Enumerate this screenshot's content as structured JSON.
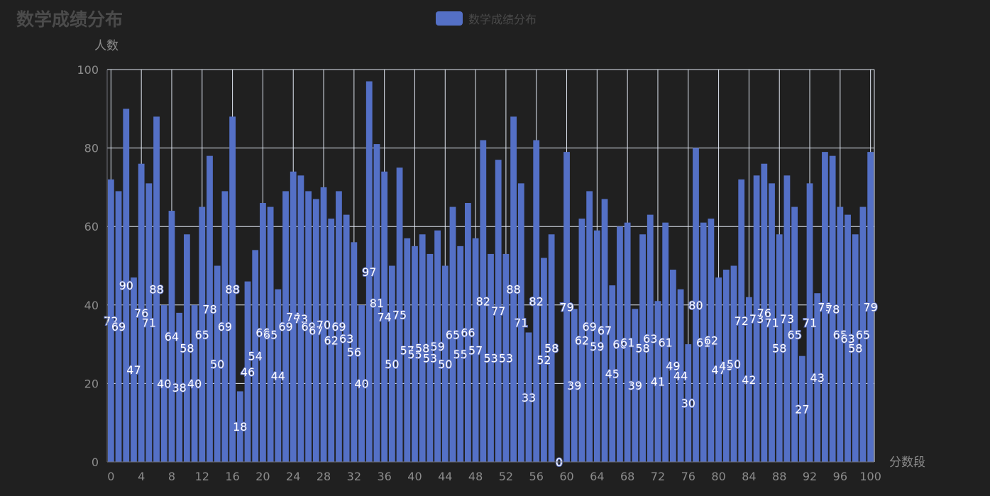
{
  "chart_data": {
    "type": "bar",
    "title": "数学成绩分布",
    "legend": [
      "数学成绩分布"
    ],
    "legend_position": "top-center",
    "xlabel": "分数段",
    "ylabel": "人数",
    "ylim": [
      0,
      100
    ],
    "y_ticks": [
      0,
      20,
      40,
      60,
      80,
      100
    ],
    "x_ticks": [
      0,
      4,
      8,
      12,
      16,
      20,
      24,
      28,
      32,
      36,
      40,
      44,
      48,
      52,
      56,
      60,
      64,
      68,
      72,
      76,
      80,
      84,
      88,
      92,
      96,
      100
    ],
    "grid": true,
    "bar_color": "#5470c6",
    "categories": [
      0,
      1,
      2,
      3,
      4,
      5,
      6,
      7,
      8,
      9,
      10,
      11,
      12,
      13,
      14,
      15,
      16,
      17,
      18,
      19,
      20,
      21,
      22,
      23,
      24,
      25,
      26,
      27,
      28,
      29,
      30,
      31,
      32,
      33,
      34,
      35,
      36,
      37,
      38,
      39,
      40,
      41,
      42,
      43,
      44,
      45,
      46,
      47,
      48,
      49,
      50,
      51,
      52,
      53,
      54,
      55,
      56,
      57,
      58,
      59,
      60,
      61,
      62,
      63,
      64,
      65,
      66,
      67,
      68,
      69,
      70,
      71,
      72,
      73,
      74,
      75,
      76,
      77,
      78,
      79,
      80,
      81,
      82,
      83,
      84,
      85,
      86,
      87,
      88,
      89,
      90,
      91,
      92,
      93,
      94,
      95,
      96,
      97,
      98,
      99,
      100
    ],
    "series": [
      {
        "name": "数学成绩分布",
        "values": [
          72,
          69,
          90,
          47,
          76,
          71,
          88,
          40,
          64,
          38,
          58,
          40,
          65,
          78,
          50,
          69,
          88,
          18,
          46,
          54,
          66,
          65,
          44,
          69,
          74,
          73,
          69,
          67,
          70,
          62,
          69,
          63,
          56,
          40,
          97,
          81,
          74,
          50,
          75,
          57,
          55,
          58,
          53,
          59,
          50,
          65,
          55,
          66,
          57,
          82,
          53,
          77,
          53,
          88,
          71,
          33,
          82,
          52,
          58,
          0,
          79,
          39,
          62,
          69,
          59,
          67,
          45,
          60,
          61,
          39,
          58,
          63,
          41,
          61,
          49,
          44,
          30,
          80,
          61,
          62,
          47,
          49,
          50,
          72,
          42,
          73,
          76,
          71,
          58,
          73,
          65,
          27,
          71,
          43,
          79,
          78,
          65,
          63,
          58,
          65,
          79
        ]
      }
    ]
  }
}
